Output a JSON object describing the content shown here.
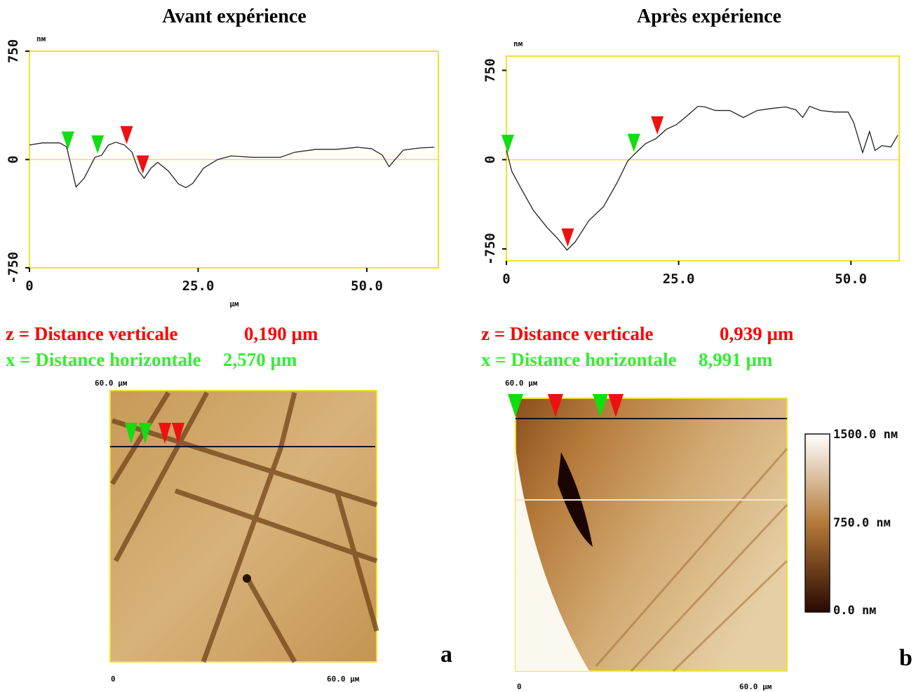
{
  "chart_data": [
    {
      "type": "line",
      "title": "Avant expérience",
      "ylabel": "nм",
      "xlabel": "µм",
      "x": [
        0,
        1.9,
        4.5,
        5.5,
        6,
        6.9,
        8.1,
        9.7,
        10.7,
        11.7,
        12.8,
        14.1,
        15.2,
        16.2,
        17,
        18,
        19,
        20.6,
        22.1,
        23.2,
        24.2,
        25.8,
        27.9,
        29.9,
        33,
        37.2,
        39.3,
        42.4,
        45.5,
        48.6,
        50.7,
        52.3,
        53.3,
        54,
        55.4,
        57.9,
        60
      ],
      "series": [
        {
          "color": "#222222",
          "values": [
            100,
            115,
            115,
            88,
            -10,
            -190,
            -130,
            15,
            30,
            100,
            120,
            100,
            50,
            -80,
            -130,
            -60,
            -20,
            -80,
            -170,
            -195,
            -165,
            -60,
            0,
            25,
            15,
            15,
            50,
            70,
            70,
            85,
            75,
            30,
            -50,
            -10,
            65,
            80,
            85
          ]
        }
      ],
      "xlim": [
        0,
        60.6
      ],
      "ylim": [
        -750,
        750
      ],
      "xticks": [
        0,
        {
          "value": 25,
          "label": "25.0"
        },
        {
          "value": 50,
          "label": "50.0"
        }
      ],
      "yticks": [
        {
          "value": -750,
          "label": "-750"
        },
        0,
        750
      ],
      "zero_line": true,
      "frame_color": "#f2e22a",
      "cursors": [
        {
          "color": "#11dd11",
          "x": [
            5.7,
            10.1
          ]
        },
        {
          "color": "#ee1111",
          "x": [
            14.4,
            16.8
          ]
        }
      ]
    },
    {
      "type": "line",
      "title": "Après expérience",
      "ylabel": "nм",
      "x": [
        0,
        0.8,
        2.3,
        3.9,
        5.9,
        7.4,
        8.8,
        10,
        12,
        14.1,
        16.1,
        17.6,
        18.6,
        20.2,
        21.7,
        23.2,
        24.7,
        26.3,
        27.8,
        28.8,
        30.3,
        32.4,
        34.4,
        36.4,
        38.5,
        40.5,
        42,
        43,
        44,
        45.6,
        47.6,
        49.6,
        50.4,
        51.7,
        52.7,
        53.5,
        54.5,
        55.8,
        56.8
      ],
      "series": [
        {
          "color": "#222222",
          "values": [
            77,
            -100,
            -260,
            -425,
            -570,
            -660,
            -760,
            -690,
            -510,
            -395,
            -190,
            -12,
            47,
            135,
            177,
            254,
            295,
            372,
            448,
            443,
            413,
            413,
            354,
            413,
            430,
            443,
            419,
            354,
            448,
            413,
            400,
            400,
            312,
            59,
            236,
            77,
            118,
            106,
            206
          ]
        }
      ],
      "xlim": [
        0,
        57
      ],
      "ylim": [
        -850,
        870
      ],
      "xticks": [
        0,
        {
          "value": 25,
          "label": "25.0"
        },
        {
          "value": 50,
          "label": "50.0"
        }
      ],
      "yticks": [
        {
          "value": -750,
          "label": "-750"
        },
        0,
        750
      ],
      "zero_line": true,
      "frame_color": "#f2e22a",
      "cursors": [
        {
          "color": "#11dd11",
          "x": [
            0.2,
            18.5
          ]
        },
        {
          "color": "#ee1111",
          "x": [
            8.9,
            21.9
          ]
        }
      ]
    }
  ],
  "measurements": [
    {
      "vertical": "z = Distance verticale",
      "vertical_value": "0,190 µm",
      "horizontal": "x = Distance horizontale",
      "horizontal_value": "2,570 µm"
    },
    {
      "vertical": "z = Distance verticale",
      "vertical_value": "0,939 µm",
      "horizontal": "x = Distance horizontale",
      "horizontal_value": "8,991 µm"
    }
  ],
  "images": [
    {
      "letter": "a",
      "top_label": "60.0 µм",
      "x_start": "0",
      "x_end": "60.0 µм"
    },
    {
      "letter": "b",
      "top_label": "60.0 µм",
      "x_start": "0",
      "x_end": "60.0 µм"
    }
  ],
  "colorbar": {
    "labels": [
      "1500.0 nм",
      "750.0 nм",
      "0.0 nм"
    ]
  }
}
